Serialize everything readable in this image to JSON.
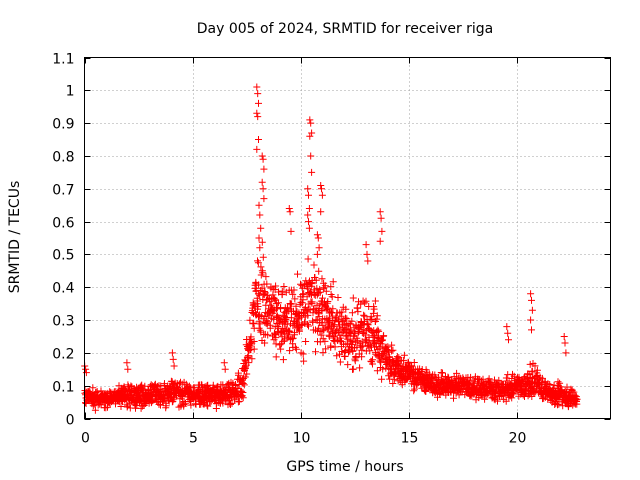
{
  "chart_data": {
    "type": "scatter",
    "title": "Day 005 of 2024, SRMTID for receiver riga",
    "xlabel": "GPS time / hours",
    "ylabel": "SRMTID / TECUs",
    "xlim": [
      0,
      24.3
    ],
    "ylim": [
      0,
      1.1
    ],
    "xticks": [
      0,
      5,
      10,
      15,
      20
    ],
    "xtick_labels": [
      "0",
      "5",
      "10",
      "15",
      "20"
    ],
    "yticks": [
      0,
      0.1,
      0.2,
      0.3,
      0.4,
      0.5,
      0.6,
      0.7,
      0.8,
      0.9,
      1,
      1.1
    ],
    "ytick_labels": [
      "0",
      "0.1",
      "0.2",
      "0.3",
      "0.4",
      "0.5",
      "0.6",
      "0.7",
      "0.8",
      "0.9",
      "1",
      "1.1"
    ],
    "grid": true,
    "marker": "+",
    "color": "#ff0000",
    "series_name": "riga",
    "data_range": [
      0,
      22.75
    ],
    "envelope": {
      "x": [
        0,
        0.5,
        1,
        1.5,
        2,
        2.5,
        3,
        3.5,
        4,
        4.5,
        5,
        5.5,
        6,
        6.5,
        7,
        7.3,
        7.6,
        7.8,
        8,
        8.2,
        8.5,
        9,
        9.3,
        9.6,
        10,
        10.3,
        10.6,
        10.9,
        11.2,
        11.6,
        12,
        12.5,
        13,
        13.5,
        14,
        14.5,
        15,
        15.5,
        16,
        16.5,
        17,
        17.5,
        18,
        18.5,
        19,
        19.5,
        20,
        20.5,
        20.8,
        21,
        21.5,
        22,
        22.75
      ],
      "med": [
        0.07,
        0.06,
        0.06,
        0.07,
        0.07,
        0.07,
        0.07,
        0.07,
        0.08,
        0.08,
        0.07,
        0.07,
        0.07,
        0.07,
        0.08,
        0.12,
        0.22,
        0.3,
        0.36,
        0.38,
        0.33,
        0.3,
        0.3,
        0.3,
        0.32,
        0.34,
        0.35,
        0.34,
        0.3,
        0.28,
        0.26,
        0.24,
        0.26,
        0.24,
        0.18,
        0.15,
        0.14,
        0.12,
        0.11,
        0.1,
        0.1,
        0.1,
        0.09,
        0.09,
        0.09,
        0.09,
        0.1,
        0.1,
        0.12,
        0.1,
        0.08,
        0.07,
        0.06
      ],
      "spread": [
        0.03,
        0.03,
        0.03,
        0.03,
        0.04,
        0.04,
        0.04,
        0.04,
        0.05,
        0.05,
        0.04,
        0.04,
        0.04,
        0.04,
        0.05,
        0.07,
        0.1,
        0.14,
        0.2,
        0.18,
        0.12,
        0.12,
        0.12,
        0.13,
        0.14,
        0.16,
        0.14,
        0.13,
        0.12,
        0.12,
        0.11,
        0.11,
        0.12,
        0.12,
        0.08,
        0.06,
        0.05,
        0.04,
        0.04,
        0.04,
        0.04,
        0.04,
        0.04,
        0.04,
        0.04,
        0.04,
        0.04,
        0.05,
        0.08,
        0.05,
        0.04,
        0.04,
        0.03
      ]
    },
    "spikes": [
      {
        "x": 0.05,
        "values": [
          0.16,
          0.15,
          0.14
        ]
      },
      {
        "x": 2.0,
        "values": [
          0.17,
          0.15
        ]
      },
      {
        "x": 4.1,
        "values": [
          0.2,
          0.18,
          0.16
        ]
      },
      {
        "x": 6.5,
        "values": [
          0.17,
          0.15
        ]
      },
      {
        "x": 8.0,
        "values": [
          1.01,
          0.99,
          0.96,
          0.93,
          0.92,
          0.85,
          0.82
        ]
      },
      {
        "x": 8.25,
        "values": [
          0.8,
          0.79,
          0.76,
          0.72,
          0.7,
          0.67
        ]
      },
      {
        "x": 8.1,
        "values": [
          0.65,
          0.62,
          0.58,
          0.55,
          0.52
        ]
      },
      {
        "x": 9.5,
        "values": [
          0.64,
          0.63,
          0.57
        ]
      },
      {
        "x": 10.45,
        "values": [
          0.91,
          0.9,
          0.87,
          0.86,
          0.8,
          0.75
        ]
      },
      {
        "x": 10.35,
        "values": [
          0.7,
          0.68,
          0.64,
          0.62,
          0.6,
          0.58
        ]
      },
      {
        "x": 10.95,
        "values": [
          0.71,
          0.7,
          0.68,
          0.63
        ]
      },
      {
        "x": 10.8,
        "values": [
          0.56,
          0.55,
          0.52,
          0.5
        ]
      },
      {
        "x": 13.7,
        "values": [
          0.63,
          0.61,
          0.57,
          0.54
        ]
      },
      {
        "x": 13.05,
        "values": [
          0.53,
          0.5,
          0.48
        ]
      },
      {
        "x": 20.65,
        "values": [
          0.38,
          0.36,
          0.33,
          0.3,
          0.27
        ]
      },
      {
        "x": 19.55,
        "values": [
          0.28,
          0.26,
          0.24
        ]
      },
      {
        "x": 22.2,
        "values": [
          0.25,
          0.23,
          0.2
        ]
      }
    ]
  }
}
